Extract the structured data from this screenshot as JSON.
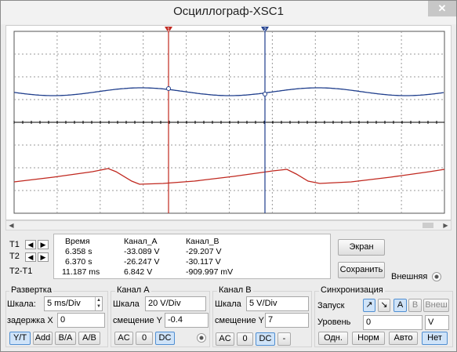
{
  "window": {
    "title": "Осциллограф-XSC1",
    "close_label": "✕"
  },
  "colors": {
    "channel_a": "#c0281f",
    "channel_b": "#1f3e8c",
    "cursor1": "#c0281f",
    "cursor2": "#1f3e8c"
  },
  "cursors": {
    "t1_marker": "1",
    "t2_marker": "2"
  },
  "readout": {
    "t1_label": "T1",
    "t2_label": "T2",
    "dt_label": "T2-T1",
    "headers": {
      "time": "Время",
      "channel_a": "Канал_A",
      "channel_b": "Канал_B"
    },
    "rows": [
      {
        "time": "6.358 s",
        "a": "-33.089 V",
        "b": "-29.207 V"
      },
      {
        "time": "6.370 s",
        "a": "-26.247 V",
        "b": "-30.117 V"
      },
      {
        "time": "11.187 ms",
        "a": "6.842 V",
        "b": "-909.997 mV"
      }
    ]
  },
  "side": {
    "screen_button": "Экран",
    "save_button": "Сохранить",
    "external_label": "Внешняя"
  },
  "timebase": {
    "title": "Развертка",
    "scale_label": "Шкала:",
    "scale_value": "5 ms/Div",
    "delay_label": "задержка X",
    "delay_value": "0",
    "buttons": [
      "Y/T",
      "Add",
      "B/A",
      "A/B"
    ]
  },
  "channel_a": {
    "title": "Канал A",
    "scale_label": "Шкала",
    "scale_value": "20  V/Div",
    "offset_label": "смещение Y",
    "offset_value": "-0.4",
    "buttons": [
      "AC",
      "0",
      "DC"
    ]
  },
  "channel_b": {
    "title": "Канал B",
    "scale_label": "Шкала",
    "scale_value": "5  V/Div",
    "offset_label": "смещение Y",
    "offset_value": "7",
    "buttons": [
      "AC",
      "0",
      "DC",
      "-"
    ]
  },
  "trigger": {
    "title": "Синхронизация",
    "edge_label": "Запуск",
    "source_buttons": [
      "A",
      "B",
      "Внеш"
    ],
    "level_label": "Уровень",
    "level_value": "0",
    "level_unit": "V",
    "mode_buttons": [
      "Одн.",
      "Норм",
      "Авто",
      "Нет"
    ]
  }
}
